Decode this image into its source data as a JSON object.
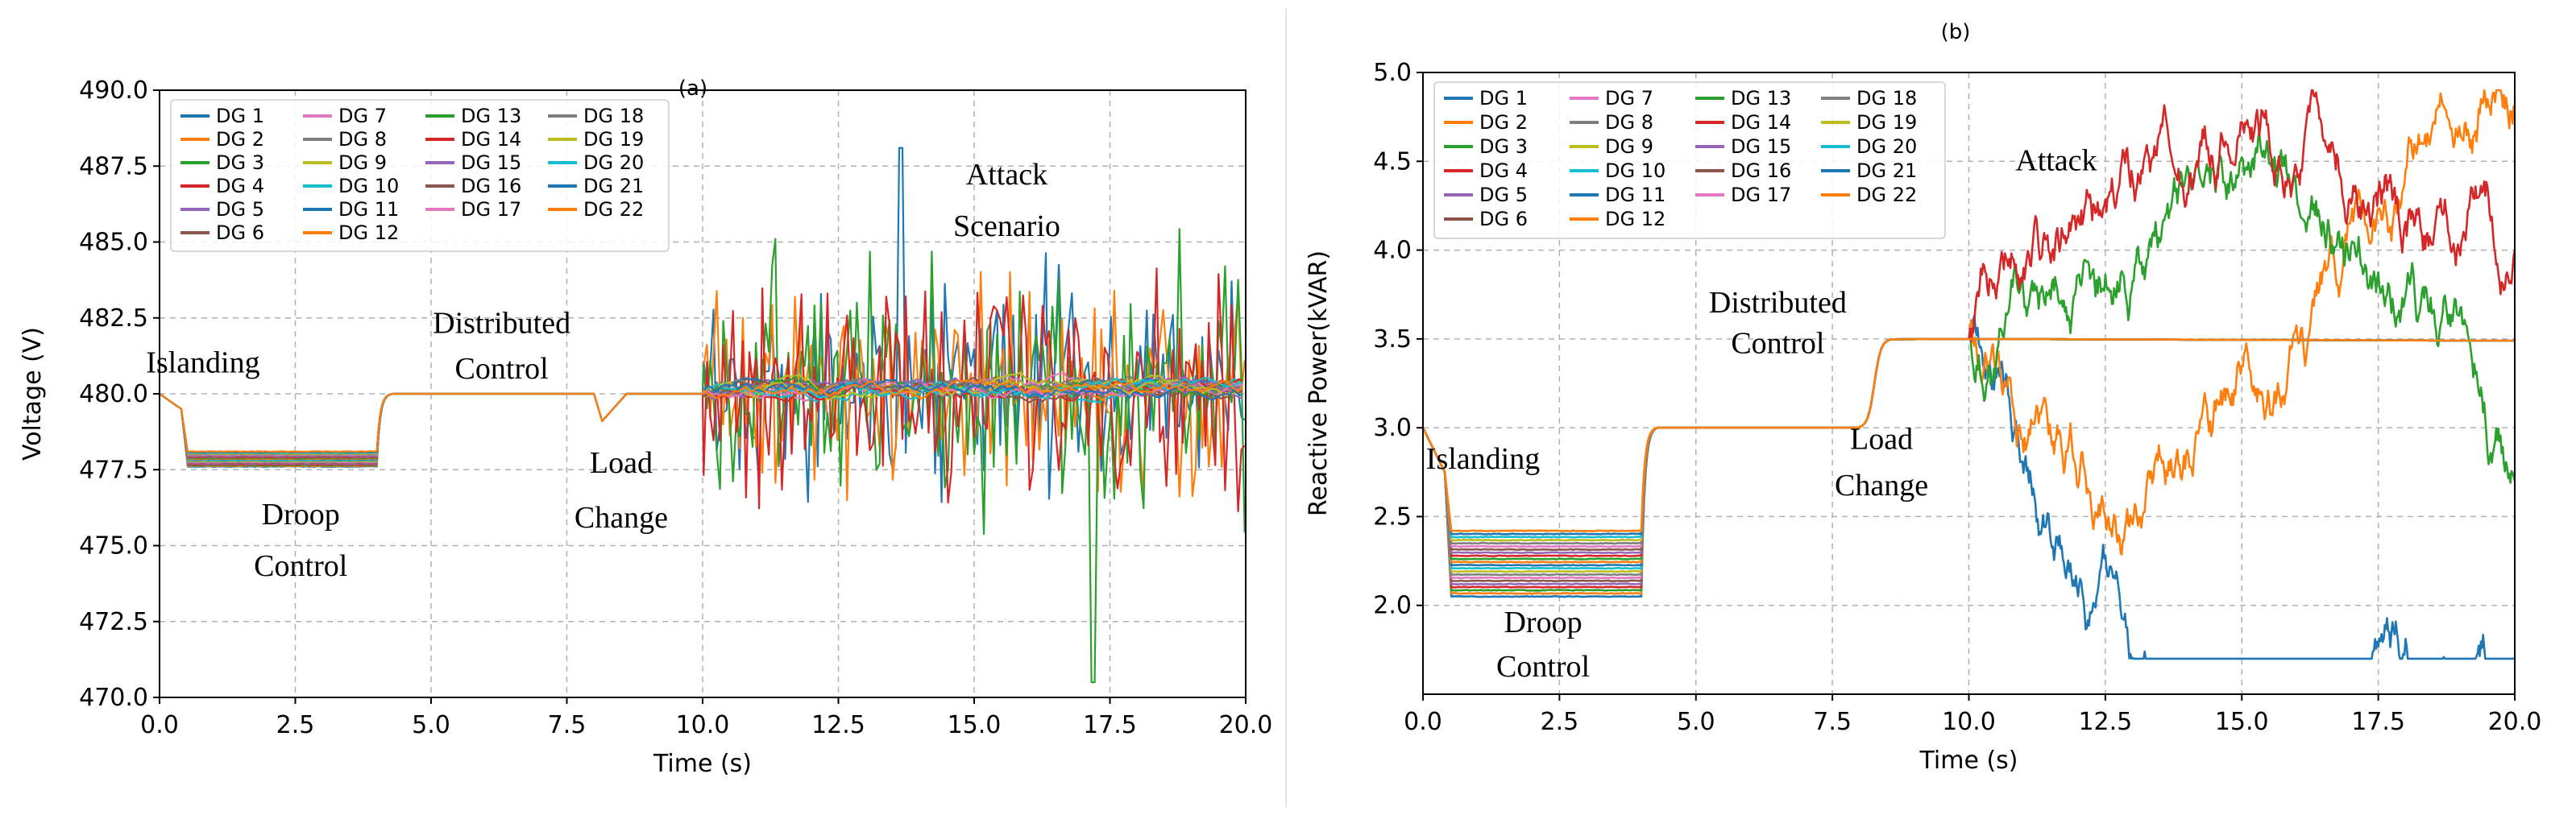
{
  "chart_data": [
    {
      "type": "line",
      "title": "(a)",
      "xlabel": "Time (s)",
      "ylabel": "Voltage (V)",
      "xlim": [
        0,
        20
      ],
      "ylim": [
        470,
        490
      ],
      "xticks": [
        "0.0",
        "2.5",
        "5.0",
        "7.5",
        "10.0",
        "12.5",
        "15.0",
        "17.5",
        "20.0"
      ],
      "yticks": [
        "470.0",
        "472.5",
        "475.0",
        "477.5",
        "480.0",
        "482.5",
        "485.0",
        "487.5",
        "490.0"
      ],
      "grid": true,
      "legend_position": "top-left",
      "legend": [
        "DG 1",
        "DG 2",
        "DG 3",
        "DG 4",
        "DG 5",
        "DG 6",
        "DG 7",
        "DG 8",
        "DG 9",
        "DG 10",
        "DG 11",
        "DG 12",
        "DG 13",
        "DG 14",
        "DG 15",
        "DG 16",
        "DG 17",
        "DG 18",
        "DG 19",
        "DG 20",
        "DG 21",
        "DG 22"
      ],
      "phases": {
        "initial": 480.0,
        "islanding_at": 0.4,
        "droop_range": [
          477.6,
          478.1
        ],
        "distributed_at": 4.0,
        "distributed_value": 480.0,
        "load_change_at": 8.0,
        "load_change_dip": 479.1,
        "attack_at": 10.0,
        "attack_range": [
          470.5,
          488.1
        ],
        "attack_mean": 480.2
      },
      "annotations": [
        {
          "text": "Islanding",
          "x": 0.8,
          "y": 480.7
        },
        {
          "text": "Droop",
          "x": 2.6,
          "y": 475.7
        },
        {
          "text": "Control",
          "x": 2.6,
          "y": 474.0
        },
        {
          "text": "Distributed",
          "x": 6.3,
          "y": 482.0
        },
        {
          "text": "Control",
          "x": 6.3,
          "y": 480.5
        },
        {
          "text": "Load",
          "x": 8.5,
          "y": 477.4
        },
        {
          "text": "Change",
          "x": 8.5,
          "y": 475.6
        },
        {
          "text": "Attack",
          "x": 15.6,
          "y": 486.9
        },
        {
          "text": "Scenario",
          "x": 15.6,
          "y": 485.2
        }
      ]
    },
    {
      "type": "line",
      "title": "(b)",
      "xlabel": "Time (s)",
      "ylabel": "Reactive Power(kVAR)",
      "xlim": [
        0,
        20
      ],
      "ylim": [
        1.5,
        5.0
      ],
      "xticks": [
        "0.0",
        "2.5",
        "5.0",
        "7.5",
        "10.0",
        "12.5",
        "15.0",
        "17.5",
        "20.0"
      ],
      "yticks": [
        "2.0",
        "2.5",
        "3.0",
        "3.5",
        "4.0",
        "4.5",
        "5.0"
      ],
      "grid": true,
      "legend_position": "top-left",
      "legend": [
        "DG 1",
        "DG 2",
        "DG 3",
        "DG 4",
        "DG 5",
        "DG 6",
        "DG 7",
        "DG 8",
        "DG 9",
        "DG 10",
        "DG 11",
        "DG 12",
        "DG 13",
        "DG 14",
        "DG 15",
        "DG 16",
        "DG 17",
        "DG 18",
        "DG 19",
        "DG 20",
        "DG 21",
        "DG 22"
      ],
      "phases": {
        "initial": 3.0,
        "islanding_at": 0.4,
        "droop_range": [
          2.05,
          2.42
        ],
        "distributed_at": 4.0,
        "distributed_value": 3.0,
        "load_change_at": 8.0,
        "post_load_value": 3.5,
        "attack_at": 10.0,
        "attack_end": {
          "DG 1": 1.7,
          "DG 2": 4.75,
          "DG 3": 2.7,
          "DG 4": 4.0
        }
      },
      "annotations": [
        {
          "text": "Islanding",
          "x": 1.1,
          "y": 2.77
        },
        {
          "text": "Droop",
          "x": 2.2,
          "y": 1.85
        },
        {
          "text": "Control",
          "x": 2.2,
          "y": 1.6
        },
        {
          "text": "Distributed",
          "x": 6.5,
          "y": 3.65
        },
        {
          "text": "Control",
          "x": 6.5,
          "y": 3.42
        },
        {
          "text": "Load",
          "x": 8.4,
          "y": 2.88
        },
        {
          "text": "Change",
          "x": 8.4,
          "y": 2.62
        },
        {
          "text": "Attack",
          "x": 11.6,
          "y": 4.45
        }
      ]
    }
  ],
  "colors": {
    "DG 1": "#1f77b4",
    "DG 2": "#ff7f0e",
    "DG 3": "#2ca02c",
    "DG 4": "#d62728",
    "DG 5": "#9467bd",
    "DG 6": "#8c564b",
    "DG 7": "#e377c2",
    "DG 8": "#7f7f7f",
    "DG 9": "#bcbd22",
    "DG 10": "#17becf",
    "DG 11": "#1f77b4",
    "DG 12": "#ff7f0e",
    "DG 13": "#2ca02c",
    "DG 14": "#d62728",
    "DG 15": "#9467bd",
    "DG 16": "#8c564b",
    "DG 17": "#e377c2",
    "DG 18": "#7f7f7f",
    "DG 19": "#bcbd22",
    "DG 20": "#17becf",
    "DG 21": "#1f77b4",
    "DG 22": "#ff7f0e"
  }
}
